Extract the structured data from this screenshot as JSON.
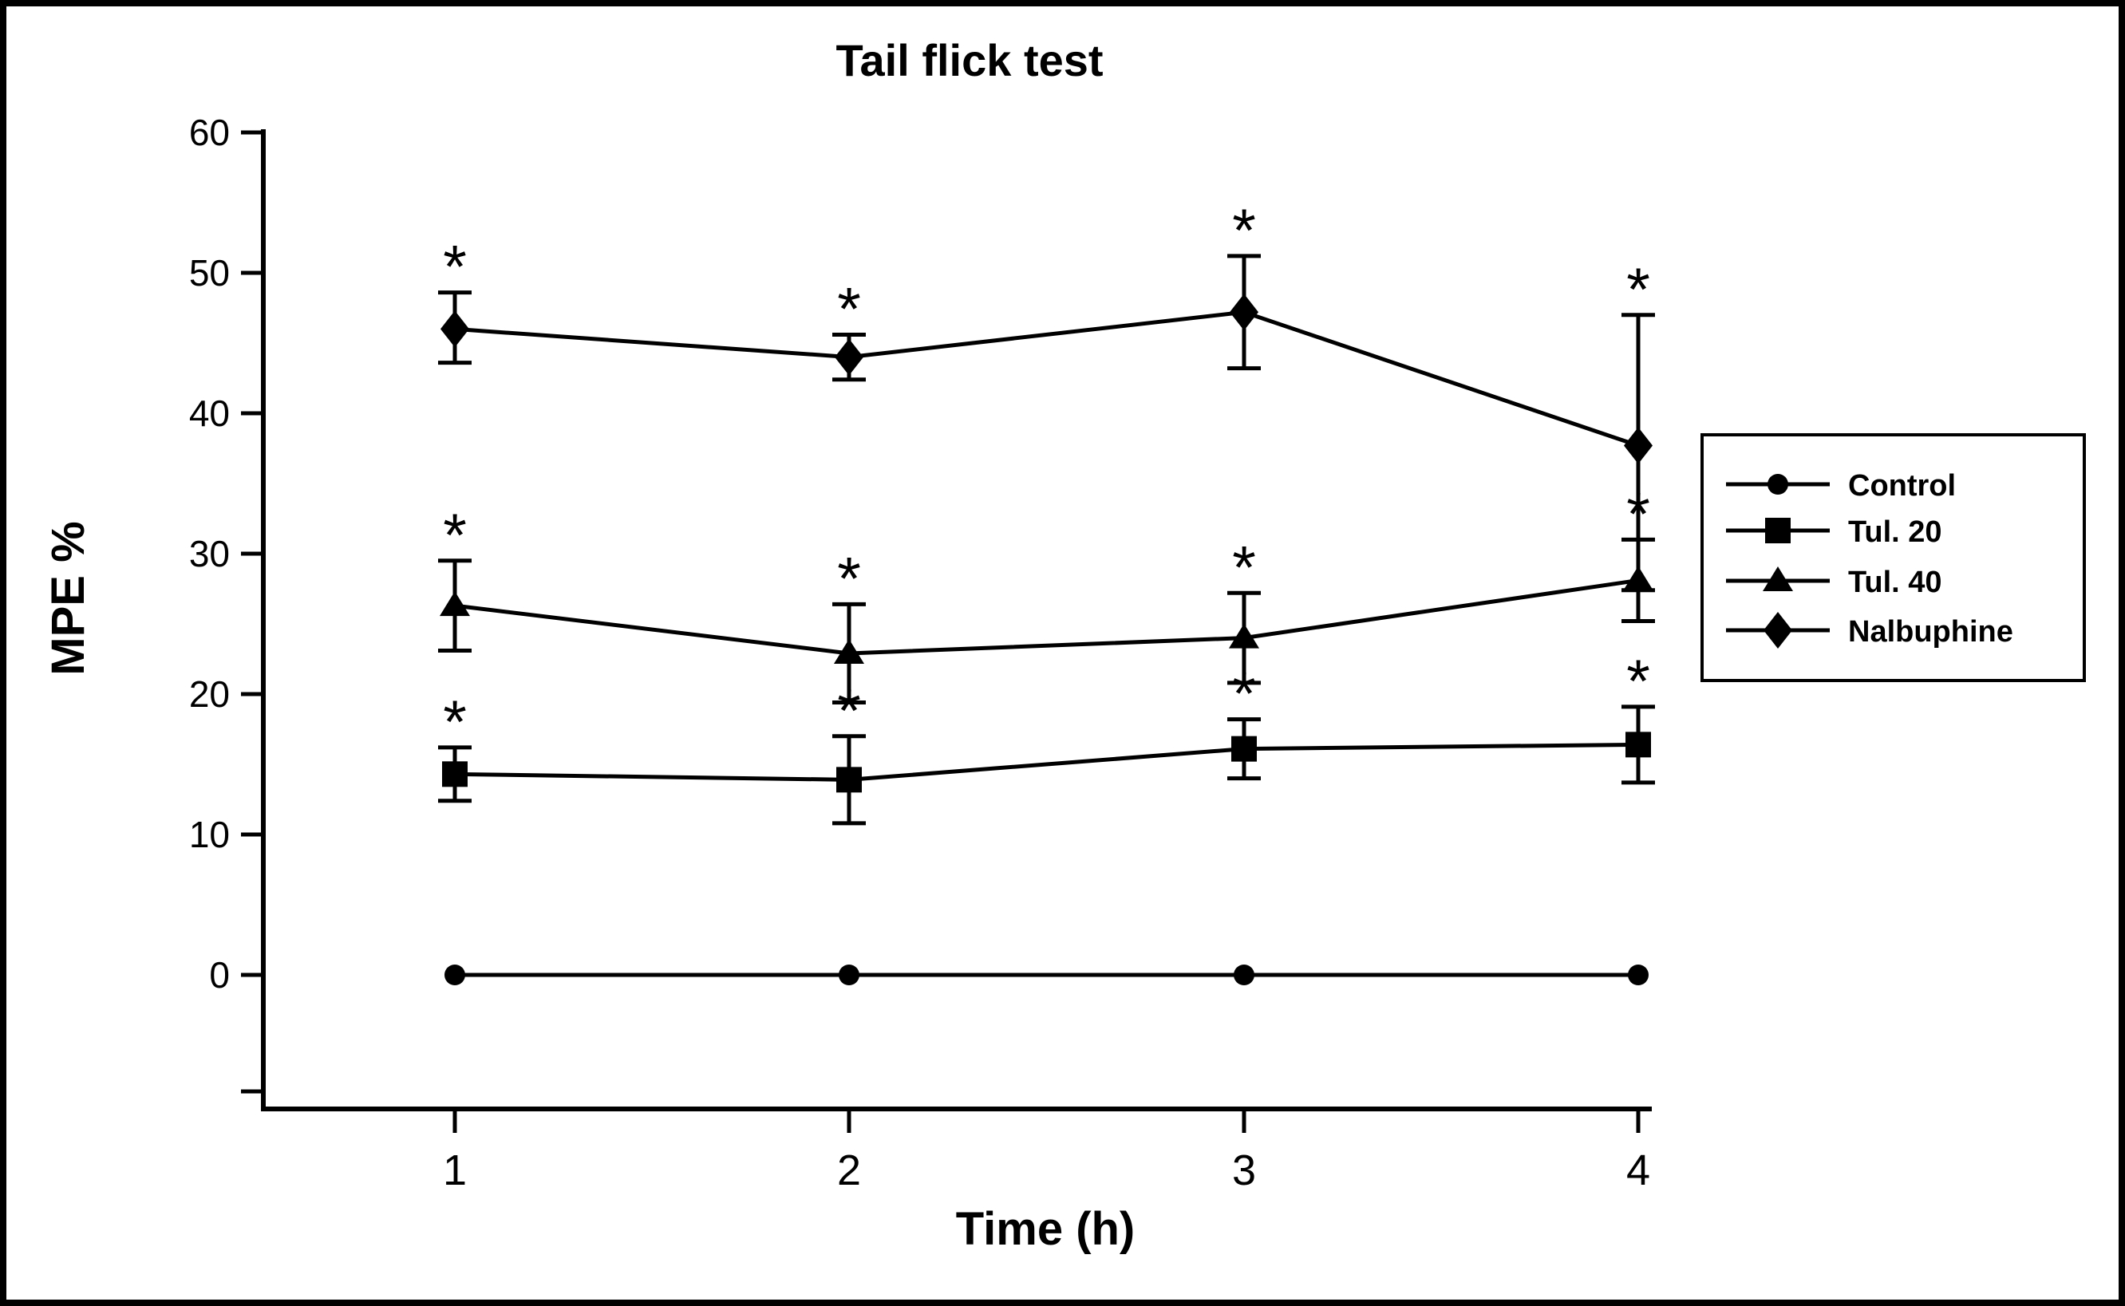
{
  "figure": {
    "background_color": "#ffffff",
    "foreground_color": "#000000",
    "border": "black frame around entire figure"
  },
  "chart_data": {
    "type": "line",
    "title": "Tail flick test",
    "xlabel": "Time (h)",
    "ylabel": "MPE %",
    "x": [
      1,
      2,
      3,
      4
    ],
    "xticks": [
      "1",
      "2",
      "3",
      "4"
    ],
    "yticks": [
      0,
      10,
      20,
      30,
      40,
      50,
      60
    ],
    "ylim": [
      -10,
      62
    ],
    "grid": false,
    "legend_position": "right-outside-box",
    "significance_symbol": "*",
    "significance_note": "asterisk shown above error bar of every treated-group point",
    "series": [
      {
        "name": "Control",
        "marker": "circle",
        "values": [
          0,
          0,
          0,
          0
        ],
        "err_up": [
          0,
          0,
          0,
          0
        ],
        "err_down": [
          0,
          0,
          0,
          0
        ],
        "significant": [
          false,
          false,
          false,
          false
        ]
      },
      {
        "name": "Tul. 20",
        "marker": "square",
        "values": [
          14.3,
          13.9,
          16.1,
          16.4
        ],
        "err_up": [
          1.9,
          3.1,
          2.1,
          2.7
        ],
        "err_down": [
          1.9,
          3.1,
          2.1,
          2.7
        ],
        "significant": [
          true,
          true,
          true,
          true
        ]
      },
      {
        "name": "Tul. 40",
        "marker": "triangle",
        "values": [
          26.3,
          22.9,
          24.0,
          28.1
        ],
        "err_up": [
          3.2,
          3.5,
          3.2,
          2.9
        ],
        "err_down": [
          3.2,
          3.5,
          3.2,
          2.9
        ],
        "significant": [
          true,
          true,
          true,
          true
        ]
      },
      {
        "name": "Nalbuphine",
        "marker": "diamond",
        "values": [
          46.0,
          44.0,
          47.2,
          37.7
        ],
        "err_up": [
          2.6,
          1.6,
          4.0,
          9.3
        ],
        "err_down": [
          2.4,
          1.6,
          4.0,
          10.3
        ],
        "significant": [
          true,
          true,
          true,
          true
        ]
      }
    ],
    "colors": {
      "foreground": "#000000",
      "background": "#ffffff"
    }
  }
}
